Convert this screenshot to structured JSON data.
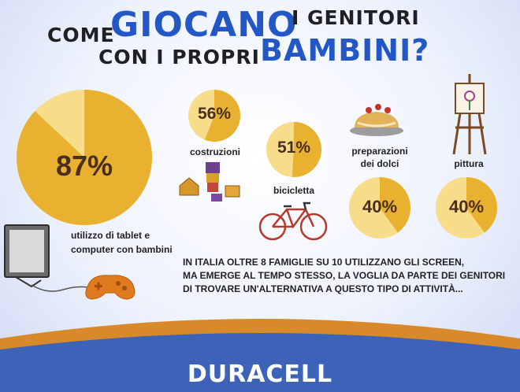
{
  "header": {
    "line1_start": "COME",
    "line1_big": "GIOCANO",
    "line1_end": "I GENITORI",
    "line2_start": "CON I PROPRI",
    "line2_big": "BAMBINI?"
  },
  "chart_data": {
    "type": "pie",
    "items": [
      {
        "category": "utilizzo di tablet e computer con bambini",
        "value": 87,
        "label": "87%"
      },
      {
        "category": "costruzioni",
        "value": 56,
        "label": "56%"
      },
      {
        "category": "bicicletta",
        "value": 51,
        "label": "51%"
      },
      {
        "category": "preparazioni dei dolci",
        "value": 40,
        "label": "40%"
      },
      {
        "category": "pittura",
        "value": 40,
        "label": "40%"
      }
    ]
  },
  "labels": {
    "tablet_line1": "utilizzo di tablet e",
    "tablet_line2": "computer con bambini",
    "costruzioni": "costruzioni",
    "bicicletta": "bicicletta",
    "dolci_line1": "preparazioni",
    "dolci_line2": "dei dolci",
    "pittura": "pittura"
  },
  "note": "In Italia oltre 8 famiglie su 10 utilizzano gli screen,\nma emerge al tempo stesso, la voglia da parte dei genitori\ndi trovare un'alternativa a questo tipo di attività...",
  "footer": {
    "brand": "DURACELL"
  },
  "colors": {
    "pie_fill": "#e8b130",
    "pie_rest": "#f7dc8a",
    "title_blue": "#2457c6",
    "band_orange": "#d88a2a",
    "band_blue": "#3c63b8"
  }
}
